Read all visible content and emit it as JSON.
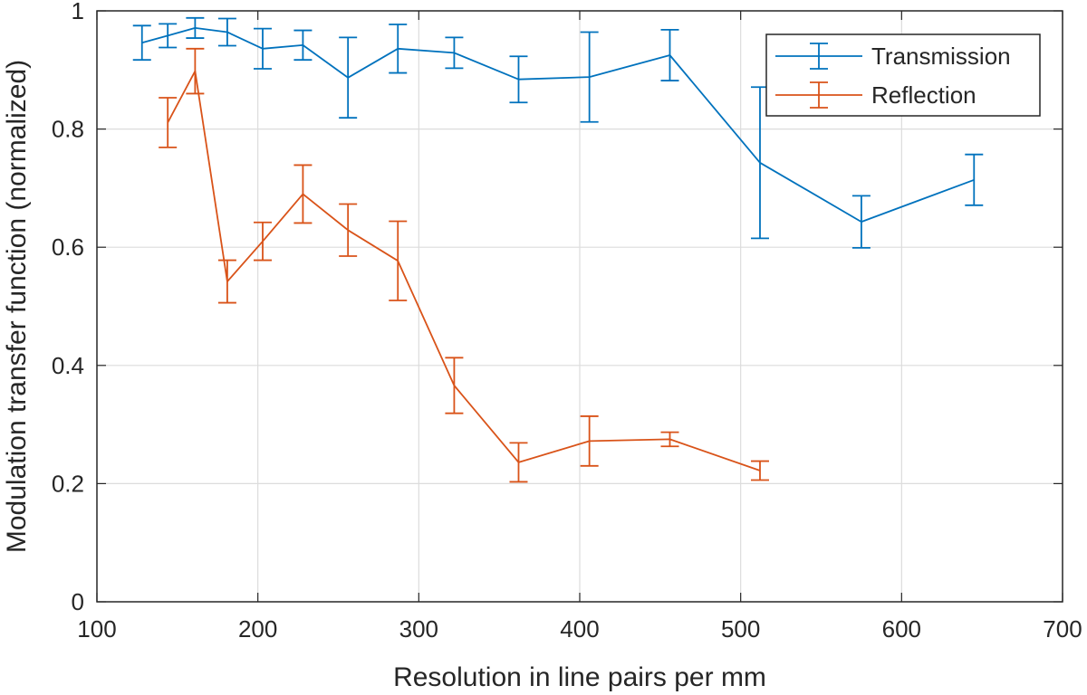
{
  "chart_data": {
    "type": "line",
    "title": "",
    "xlabel": "Resolution in line pairs per mm",
    "ylabel": "Modulation transfer function (normalized)",
    "xlim": [
      100,
      700
    ],
    "ylim": [
      0,
      1
    ],
    "xticks": [
      100,
      200,
      300,
      400,
      500,
      600,
      700
    ],
    "yticks": [
      0,
      0.2,
      0.4,
      0.6,
      0.8,
      1
    ],
    "ytick_labels": [
      "0",
      "0.2",
      "0.4",
      "0.6",
      "0.8",
      "1"
    ],
    "grid": true,
    "legend_position": "top-right",
    "error_bars": true,
    "series": [
      {
        "name": "Transmission",
        "color": "#0072BD",
        "x": [
          128,
          144,
          161,
          181,
          203,
          228,
          256,
          287,
          322,
          362,
          406,
          456,
          512,
          575,
          645
        ],
        "y": [
          0.946,
          0.958,
          0.971,
          0.964,
          0.936,
          0.942,
          0.887,
          0.936,
          0.929,
          0.884,
          0.888,
          0.925,
          0.743,
          0.643,
          0.714
        ],
        "err_low": [
          0.029,
          0.02,
          0.017,
          0.023,
          0.034,
          0.025,
          0.068,
          0.041,
          0.026,
          0.039,
          0.076,
          0.043,
          0.128,
          0.044,
          0.043
        ],
        "err_high": [
          0.029,
          0.02,
          0.017,
          0.023,
          0.034,
          0.025,
          0.068,
          0.041,
          0.026,
          0.039,
          0.076,
          0.043,
          0.128,
          0.044,
          0.043
        ]
      },
      {
        "name": "Reflection",
        "color": "#D95319",
        "x": [
          144,
          161,
          181,
          203,
          228,
          256,
          287,
          322,
          362,
          406,
          456,
          512
        ],
        "y": [
          0.811,
          0.898,
          0.542,
          0.61,
          0.69,
          0.629,
          0.577,
          0.366,
          0.236,
          0.272,
          0.275,
          0.222
        ],
        "err_low": [
          0.042,
          0.038,
          0.036,
          0.032,
          0.049,
          0.044,
          0.067,
          0.047,
          0.033,
          0.042,
          0.012,
          0.016
        ],
        "err_high": [
          0.042,
          0.038,
          0.036,
          0.032,
          0.049,
          0.044,
          0.067,
          0.047,
          0.033,
          0.042,
          0.012,
          0.016
        ]
      }
    ]
  }
}
